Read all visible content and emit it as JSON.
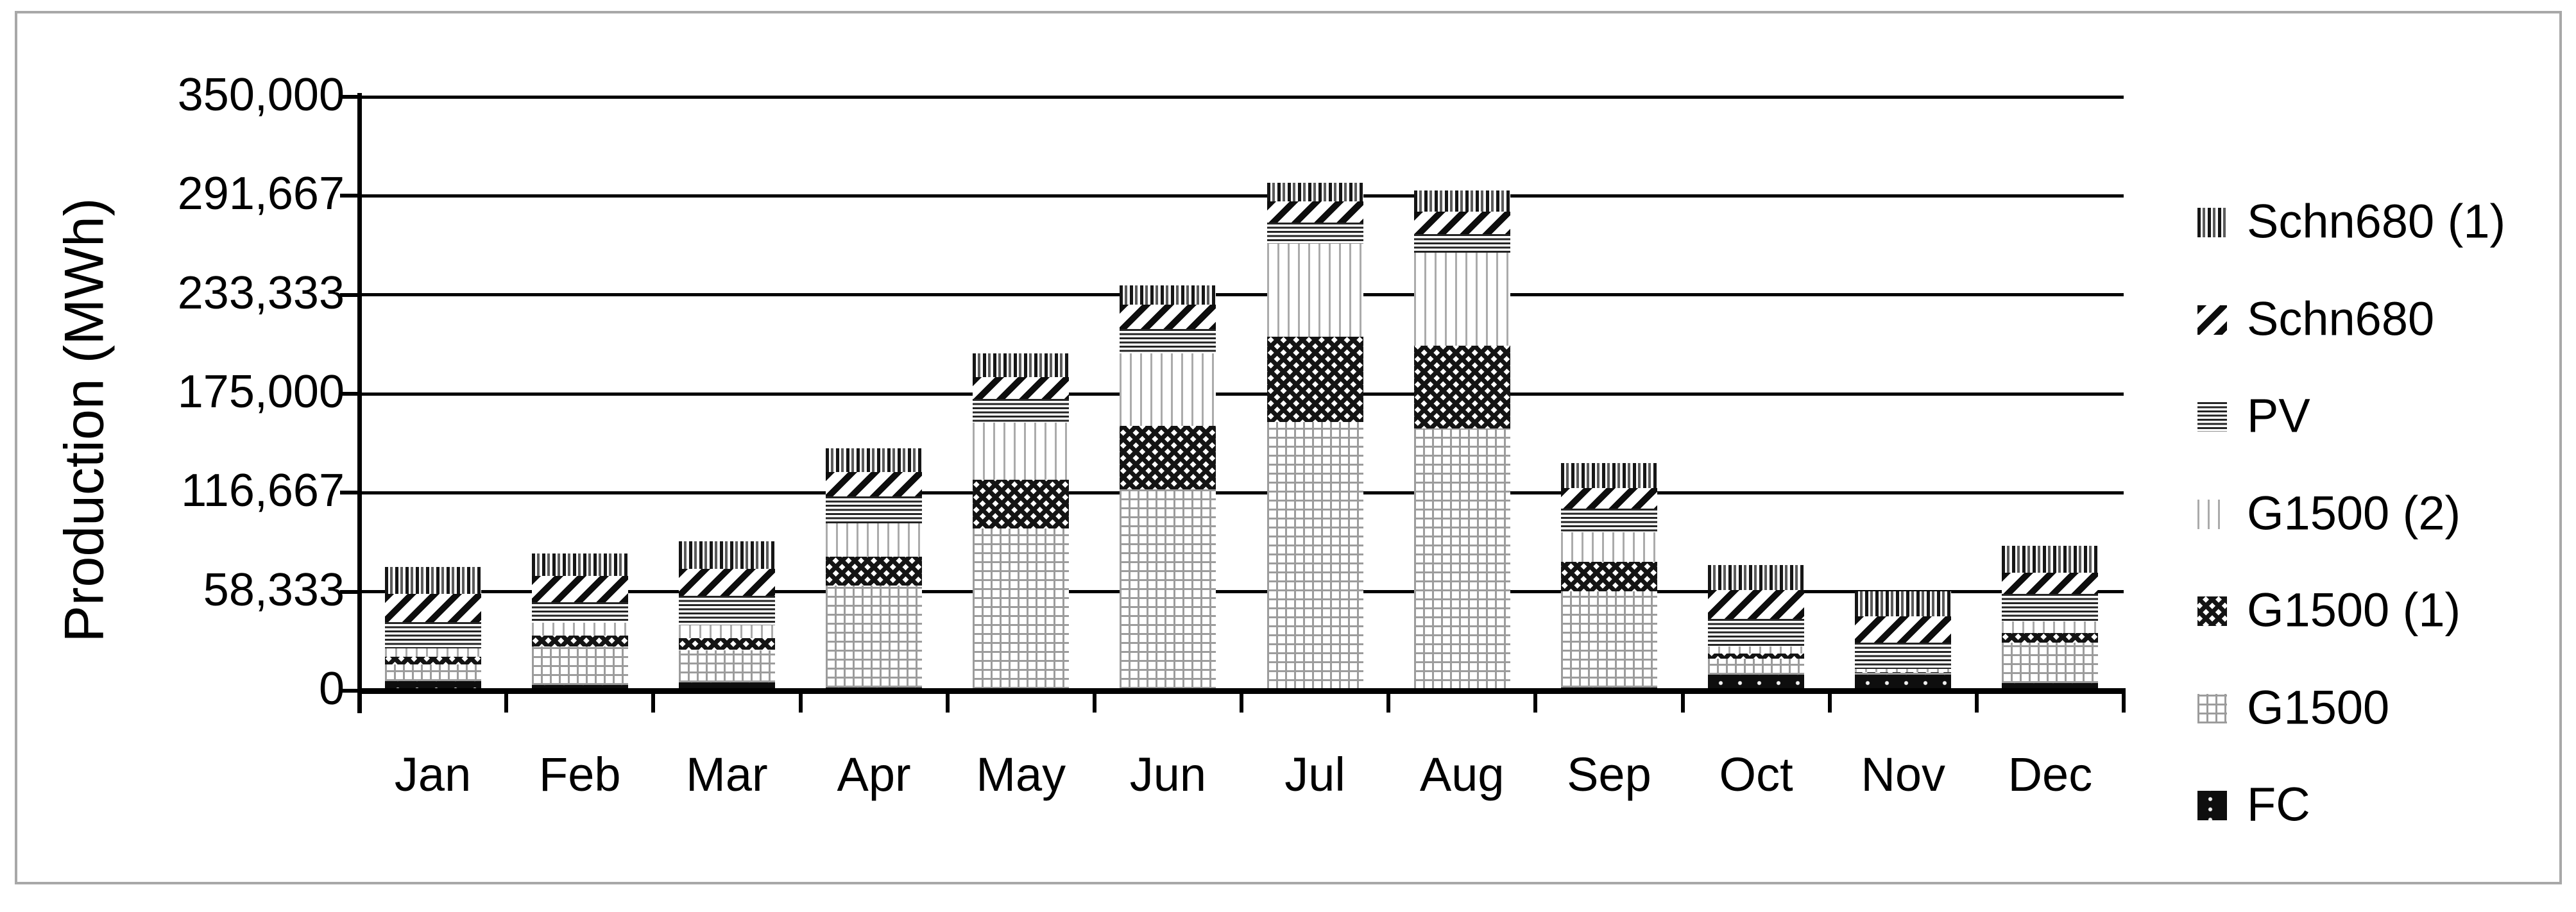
{
  "figure": {
    "border_color": "#a8a8a8",
    "background_color": "#ffffff",
    "text_color": "#000000"
  },
  "chart_data": {
    "type": "bar",
    "stacked": true,
    "title": "",
    "xlabel": "",
    "ylabel": "Production (MWh)",
    "ylim": [
      0,
      350000
    ],
    "grid": "horizontal",
    "legend_position": "right",
    "y_ticks": [
      "350,000",
      "291,667",
      "233,333",
      "175,000",
      "116,667",
      "58,333",
      "0"
    ],
    "categories": [
      "Jan",
      "Feb",
      "Mar",
      "Apr",
      "May",
      "Jun",
      "Jul",
      "Aug",
      "Sep",
      "Oct",
      "Nov",
      "Dec"
    ],
    "series": [
      {
        "key": "fc",
        "label": "FC",
        "pattern": "black-with-white-dots",
        "values": [
          5500,
          3500,
          5000,
          2000,
          1000,
          1000,
          500,
          500,
          2000,
          9500,
          9500,
          4500
        ]
      },
      {
        "key": "g1500",
        "label": "G1500",
        "pattern": "light-gray-grid",
        "values": [
          10000,
          22500,
          19000,
          60000,
          94500,
          117500,
          158000,
          154000,
          56500,
          9500,
          1000,
          24000
        ]
      },
      {
        "key": "g1500_1",
        "label": "G1500 (1)",
        "pattern": "dark-diamond-weave",
        "values": [
          4500,
          6500,
          7000,
          17000,
          29000,
          37500,
          50000,
          49000,
          17500,
          3000,
          500,
          5500
        ]
      },
      {
        "key": "g1500_2",
        "label": "G1500 (2)",
        "pattern": "sparse-light-vertical-lines",
        "values": [
          5000,
          7500,
          7500,
          19500,
          33500,
          43000,
          55000,
          54500,
          17500,
          4000,
          2000,
          7000
        ]
      },
      {
        "key": "pv",
        "label": "PV",
        "pattern": "horizontal-lines",
        "values": [
          15500,
          12000,
          17500,
          16000,
          14000,
          14000,
          12500,
          11000,
          14000,
          16500,
          15500,
          16000
        ]
      },
      {
        "key": "schn680",
        "label": "Schn680",
        "pattern": "diagonal-stripes",
        "values": [
          16500,
          15500,
          16000,
          14500,
          13000,
          14500,
          12500,
          13500,
          12000,
          17000,
          15500,
          12500
        ]
      },
      {
        "key": "schn680_1",
        "label": "Schn680 (1)",
        "pattern": "dense-vertical-stripes",
        "values": [
          16000,
          13500,
          16000,
          14000,
          14000,
          11500,
          11000,
          12500,
          14500,
          14500,
          14500,
          16000
        ]
      }
    ],
    "totals": [
      73000,
      81000,
      88000,
      143000,
      199000,
      239000,
      299500,
      295000,
      134000,
      74000,
      58500,
      85500
    ],
    "legend_order": [
      "schn680_1",
      "schn680",
      "pv",
      "g1500_2",
      "g1500_1",
      "g1500",
      "fc"
    ]
  }
}
